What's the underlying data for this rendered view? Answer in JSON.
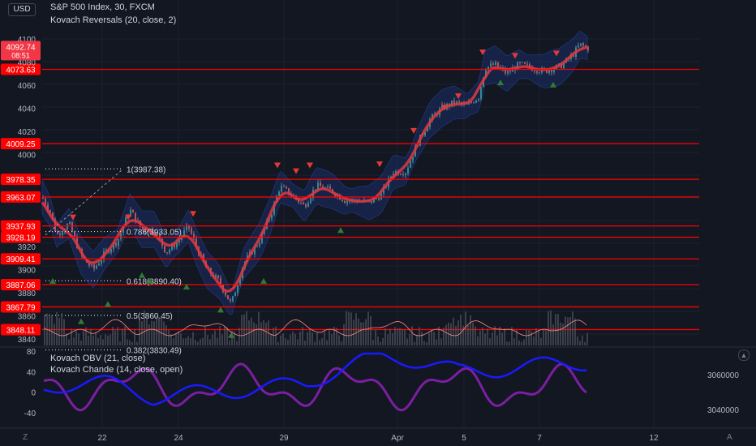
{
  "header": {
    "currency_button": "USD",
    "title": "S&P 500 Index, 30, FXCM",
    "indicator1": "Kovach Reversals (20, close, 2)"
  },
  "lower_pane": {
    "indicator_obv": "Kovach OBV (21, close)",
    "indicator_chande": "Kovach Chande (14, close, open)"
  },
  "price_axis": {
    "ticks": [
      "4100",
      "4080",
      "4060",
      "4040",
      "4020",
      "4000",
      "3920",
      "3900",
      "3880",
      "3860",
      "3840"
    ],
    "current_price": "4092.74",
    "countdown": "08:51"
  },
  "levels": {
    "values": [
      "4073.63",
      "4009.25",
      "3978.35",
      "3963.07",
      "3937.93",
      "3928.19",
      "3909.41",
      "3887.06",
      "3867.79",
      "3848.11"
    ],
    "color": "#ff0000"
  },
  "fib_labels": [
    "1(3987.38)",
    "0.786(3933.05)",
    "0.618(3890.40)",
    "0.5(3860.45)",
    "0.382(3830.49)"
  ],
  "lower_axis_left": [
    "80",
    "40",
    "0",
    "-40"
  ],
  "lower_axis_right": [
    "3060000",
    "3040000"
  ],
  "time_axis": [
    "22",
    "24",
    "29",
    "Apr",
    "5",
    "7",
    "12"
  ],
  "footer": {
    "left_button": "Z",
    "right_button": "A"
  },
  "colors": {
    "background": "#131722",
    "level_line": "#ff0000",
    "ma_line": "#e0383e",
    "band_fill": "#1e3a8a",
    "obv_line": "#1a1aff",
    "chande_line": "#7b1fa2",
    "sell_marker": "#e53935",
    "buy_marker": "#2e7d32"
  },
  "chart_data": {
    "type": "line",
    "symbol": "S&P 500 Index, 30, FXCM",
    "x": [
      "22",
      "24",
      "29",
      "Apr",
      "5",
      "7",
      "12"
    ],
    "price_series": [
      {
        "x": "start",
        "y": 3963
      },
      {
        "x": "22",
        "y": 3905
      },
      {
        "x": "23",
        "y": 3940
      },
      {
        "x": "24",
        "y": 3910
      },
      {
        "x": "26",
        "y": 3868
      },
      {
        "x": "29",
        "y": 3960
      },
      {
        "x": "31",
        "y": 3955
      },
      {
        "x": "Apr",
        "y": 3985
      },
      {
        "x": "4",
        "y": 4015
      },
      {
        "x": "5",
        "y": 4045
      },
      {
        "x": "6",
        "y": 4078
      },
      {
        "x": "7",
        "y": 4072
      },
      {
        "x": "end",
        "y": 4092.74
      }
    ],
    "horizontal_levels": [
      4073.63,
      4009.25,
      3978.35,
      3963.07,
      3937.93,
      3928.19,
      3909.41,
      3887.06,
      3867.79,
      3848.11
    ],
    "fib_levels": [
      {
        "ratio": "1",
        "price": 3987.38
      },
      {
        "ratio": "0.786",
        "price": 3933.05
      },
      {
        "ratio": "0.618",
        "price": 3890.4
      },
      {
        "ratio": "0.5",
        "price": 3860.45
      },
      {
        "ratio": "0.382",
        "price": 3830.49
      }
    ],
    "obv_range_right": [
      3040000,
      3060000
    ],
    "chande_range_left": [
      -40,
      80
    ]
  }
}
